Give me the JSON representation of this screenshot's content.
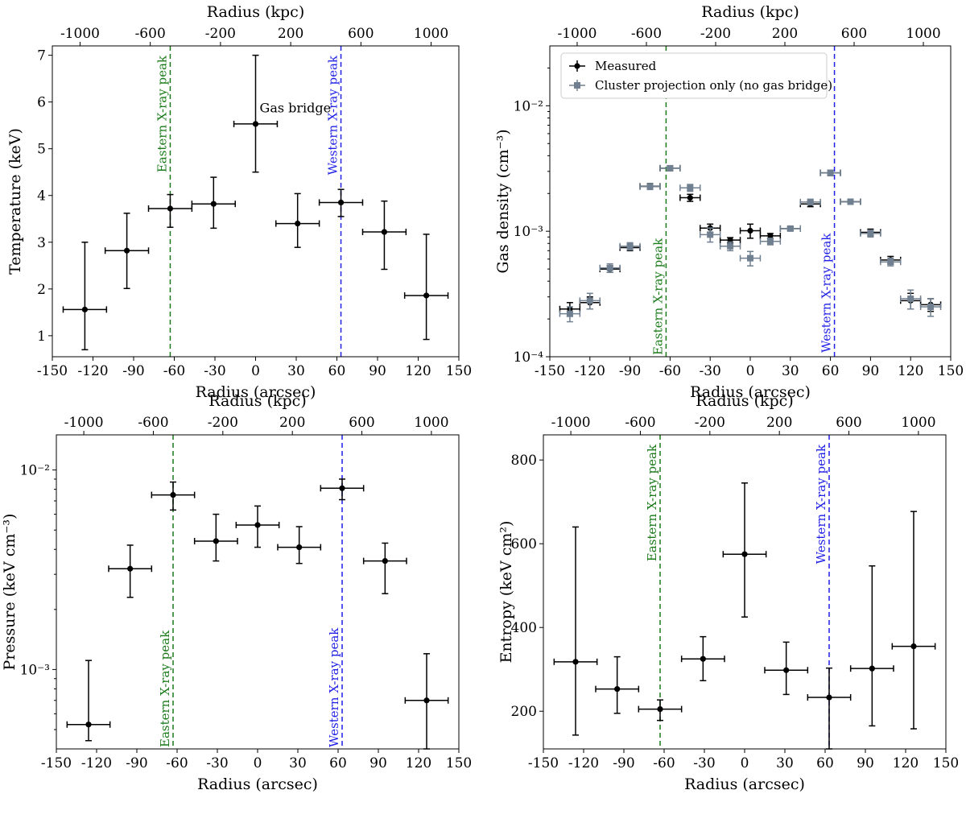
{
  "colors": {
    "measured": "#000000",
    "projection": "#708090",
    "eastern_line": "#1a7a1a",
    "western_line": "#1f1fe6",
    "frame": "#000000"
  },
  "chart_data": [
    {
      "id": "temperature",
      "type": "scatter",
      "xlabel": "Radius (arcsec)",
      "ylabel": "Temperature (keV)",
      "top_xlabel": "Radius (kpc)",
      "xlim": [
        -150,
        150
      ],
      "ylim": [
        0.55,
        7.2
      ],
      "yscale": "linear",
      "xticks": [
        -150,
        -120,
        -90,
        -60,
        -30,
        0,
        30,
        60,
        90,
        120,
        150
      ],
      "yticks": [
        1,
        2,
        3,
        4,
        5,
        6,
        7
      ],
      "top_ticks": [
        -1000,
        -600,
        -200,
        200,
        600,
        1000
      ],
      "eastern_peak": {
        "x": -63,
        "label": "Eastern X-ray peak"
      },
      "western_peak": {
        "x": 63,
        "label": "Western X-ray peak"
      },
      "annotations": [
        {
          "text": "Gas bridge",
          "x": 3,
          "y": 5.78
        }
      ],
      "series": [
        {
          "name": "Measured",
          "x": [
            -126,
            -95,
            -63,
            -31,
            0,
            31,
            63,
            95,
            126
          ],
          "xerr": [
            16,
            16,
            16,
            16,
            16,
            16,
            16,
            16,
            16
          ],
          "y": [
            1.56,
            2.82,
            3.72,
            3.82,
            5.53,
            3.4,
            3.85,
            3.22,
            1.86
          ],
          "yerr_low": [
            0.86,
            0.81,
            0.4,
            0.52,
            1.03,
            0.51,
            0.3,
            0.8,
            0.94
          ],
          "yerr_high": [
            1.44,
            0.8,
            0.3,
            0.57,
            1.47,
            0.64,
            0.28,
            0.66,
            1.31
          ]
        }
      ]
    },
    {
      "id": "density",
      "type": "scatter",
      "xlabel": "Radius (arcsec)",
      "ylabel": "Gas density (cm⁻³)",
      "top_xlabel": "Radius (kpc)",
      "xlim": [
        -150,
        150
      ],
      "ylim": [
        0.0001,
        0.03
      ],
      "yscale": "log",
      "xticks": [
        -150,
        -120,
        -90,
        -60,
        -30,
        0,
        30,
        60,
        90,
        120,
        150
      ],
      "yticks": [
        0.0001,
        0.001,
        0.01
      ],
      "ytick_labels": [
        "10⁻⁴",
        "10⁻³",
        "10⁻²"
      ],
      "top_ticks": [
        -1000,
        -600,
        -200,
        200,
        600,
        1000
      ],
      "eastern_peak": {
        "x": -63,
        "label": "Eastern X-ray peak"
      },
      "western_peak": {
        "x": 63,
        "label": "Western X-ray peak"
      },
      "legend": {
        "position": "top-left",
        "entries": [
          "Measured",
          "Cluster projection only (no gas bridge)"
        ]
      },
      "series": [
        {
          "name": "Measured",
          "x": [
            -135,
            -120,
            -105,
            -90,
            -75,
            -60,
            -45,
            -30,
            -15,
            0,
            15,
            30,
            45,
            60,
            75,
            90,
            105,
            120,
            135
          ],
          "xerr": [
            7.5,
            7.5,
            7.5,
            7.5,
            7.5,
            7.5,
            7.5,
            7.5,
            7.5,
            7.5,
            7.5,
            7.5,
            7.5,
            7.5,
            7.5,
            7.5,
            7.5,
            7.5,
            7.5
          ],
          "y": [
            0.00024,
            0.00027,
            0.0005,
            0.00074,
            0.00228,
            0.00318,
            0.00185,
            0.00106,
            0.00085,
            0.00101,
            0.00092,
            0.00105,
            0.00165,
            0.00292,
            0.00172,
            0.00098,
            0.00059,
            0.00028,
            0.00026
          ],
          "yerr": [
            3e-05,
            3e-05,
            3e-05,
            4e-05,
            0.00012,
            0.00015,
            0.00012,
            8e-05,
            4e-05,
            0.00013,
            4e-05,
            3e-05,
            8e-05,
            0.00015,
            8e-05,
            6e-05,
            4e-05,
            4e-05,
            3e-05
          ]
        },
        {
          "name": "Cluster projection only (no gas bridge)",
          "x": [
            -135,
            -120,
            -105,
            -90,
            -75,
            -60,
            -45,
            -30,
            -15,
            0,
            15,
            30,
            45,
            60,
            75,
            90,
            105,
            120,
            135
          ],
          "xerr": [
            7.5,
            7.5,
            7.5,
            7.5,
            7.5,
            7.5,
            7.5,
            7.5,
            7.5,
            7.5,
            7.5,
            7.5,
            7.5,
            7.5,
            7.5,
            7.5,
            7.5,
            7.5,
            7.5
          ],
          "y": [
            0.00022,
            0.00028,
            0.00051,
            0.00076,
            0.00227,
            0.00318,
            0.00222,
            0.00094,
            0.00076,
            0.00061,
            0.00083,
            0.00105,
            0.00171,
            0.00292,
            0.00172,
            0.00096,
            0.00057,
            0.00029,
            0.00025
          ],
          "yerr": [
            3e-05,
            4e-05,
            4e-05,
            5e-05,
            0.00012,
            0.00015,
            0.00014,
            0.00012,
            6e-05,
            8e-05,
            5e-05,
            4e-05,
            9e-05,
            0.00015,
            8e-05,
            6e-05,
            4e-05,
            5e-05,
            4e-05
          ]
        }
      ]
    },
    {
      "id": "pressure",
      "type": "scatter",
      "xlabel": "Radius (arcsec)",
      "ylabel": "Pressure (keV cm⁻³)",
      "top_xlabel": "Radius (kpc)",
      "xlim": [
        -150,
        150
      ],
      "ylim": [
        0.0004,
        0.015
      ],
      "yscale": "log",
      "xticks": [
        -150,
        -120,
        -90,
        -60,
        -30,
        0,
        30,
        60,
        90,
        120,
        150
      ],
      "yticks": [
        0.001,
        0.01
      ],
      "ytick_labels": [
        "10⁻³",
        "10⁻²"
      ],
      "top_ticks": [
        -1000,
        -600,
        -200,
        200,
        600,
        1000
      ],
      "eastern_peak": {
        "x": -63,
        "label": "Eastern X-ray peak"
      },
      "western_peak": {
        "x": 63,
        "label": "Western X-ray peak"
      },
      "series": [
        {
          "name": "Measured",
          "x": [
            -126,
            -95,
            -63,
            -31,
            0,
            31,
            63,
            95,
            126
          ],
          "xerr": [
            16,
            16,
            16,
            16,
            16,
            16,
            16,
            16,
            16
          ],
          "y": [
            0.00053,
            0.0032,
            0.0075,
            0.0044,
            0.0053,
            0.0041,
            0.0081,
            0.0035,
            0.0007
          ],
          "yerr_low": [
            9e-05,
            0.0009,
            0.0012,
            0.0009,
            0.0012,
            0.0007,
            0.001,
            0.0011,
            0.0003
          ],
          "yerr_high": [
            0.00058,
            0.001,
            0.0012,
            0.0016,
            0.0013,
            0.0011,
            0.0009,
            0.0008,
            0.0005
          ]
        }
      ]
    },
    {
      "id": "entropy",
      "type": "scatter",
      "xlabel": "Radius (arcsec)",
      "ylabel": "Entropy (keV cm²)",
      "top_xlabel": "Radius (kpc)",
      "xlim": [
        -150,
        150
      ],
      "ylim": [
        110,
        860
      ],
      "yscale": "linear",
      "xticks": [
        -150,
        -120,
        -90,
        -60,
        -30,
        0,
        30,
        60,
        90,
        120,
        150
      ],
      "yticks": [
        200,
        400,
        600,
        800
      ],
      "top_ticks": [
        -1000,
        -600,
        -200,
        200,
        600,
        1000
      ],
      "eastern_peak": {
        "x": -63,
        "label": "Eastern X-ray peak"
      },
      "western_peak": {
        "x": 63,
        "label": "Western X-ray peak"
      },
      "series": [
        {
          "name": "Measured",
          "x": [
            -126,
            -95,
            -63,
            -31,
            0,
            31,
            63,
            95,
            126
          ],
          "xerr": [
            16,
            16,
            16,
            16,
            16,
            16,
            16,
            16,
            16
          ],
          "y": [
            318,
            253,
            205,
            325,
            575,
            298,
            233,
            302,
            355
          ],
          "yerr_low": [
            175,
            58,
            27,
            52,
            150,
            58,
            142,
            137,
            197
          ],
          "yerr_high": [
            322,
            77,
            22,
            53,
            170,
            67,
            70,
            245,
            322
          ]
        }
      ]
    }
  ]
}
